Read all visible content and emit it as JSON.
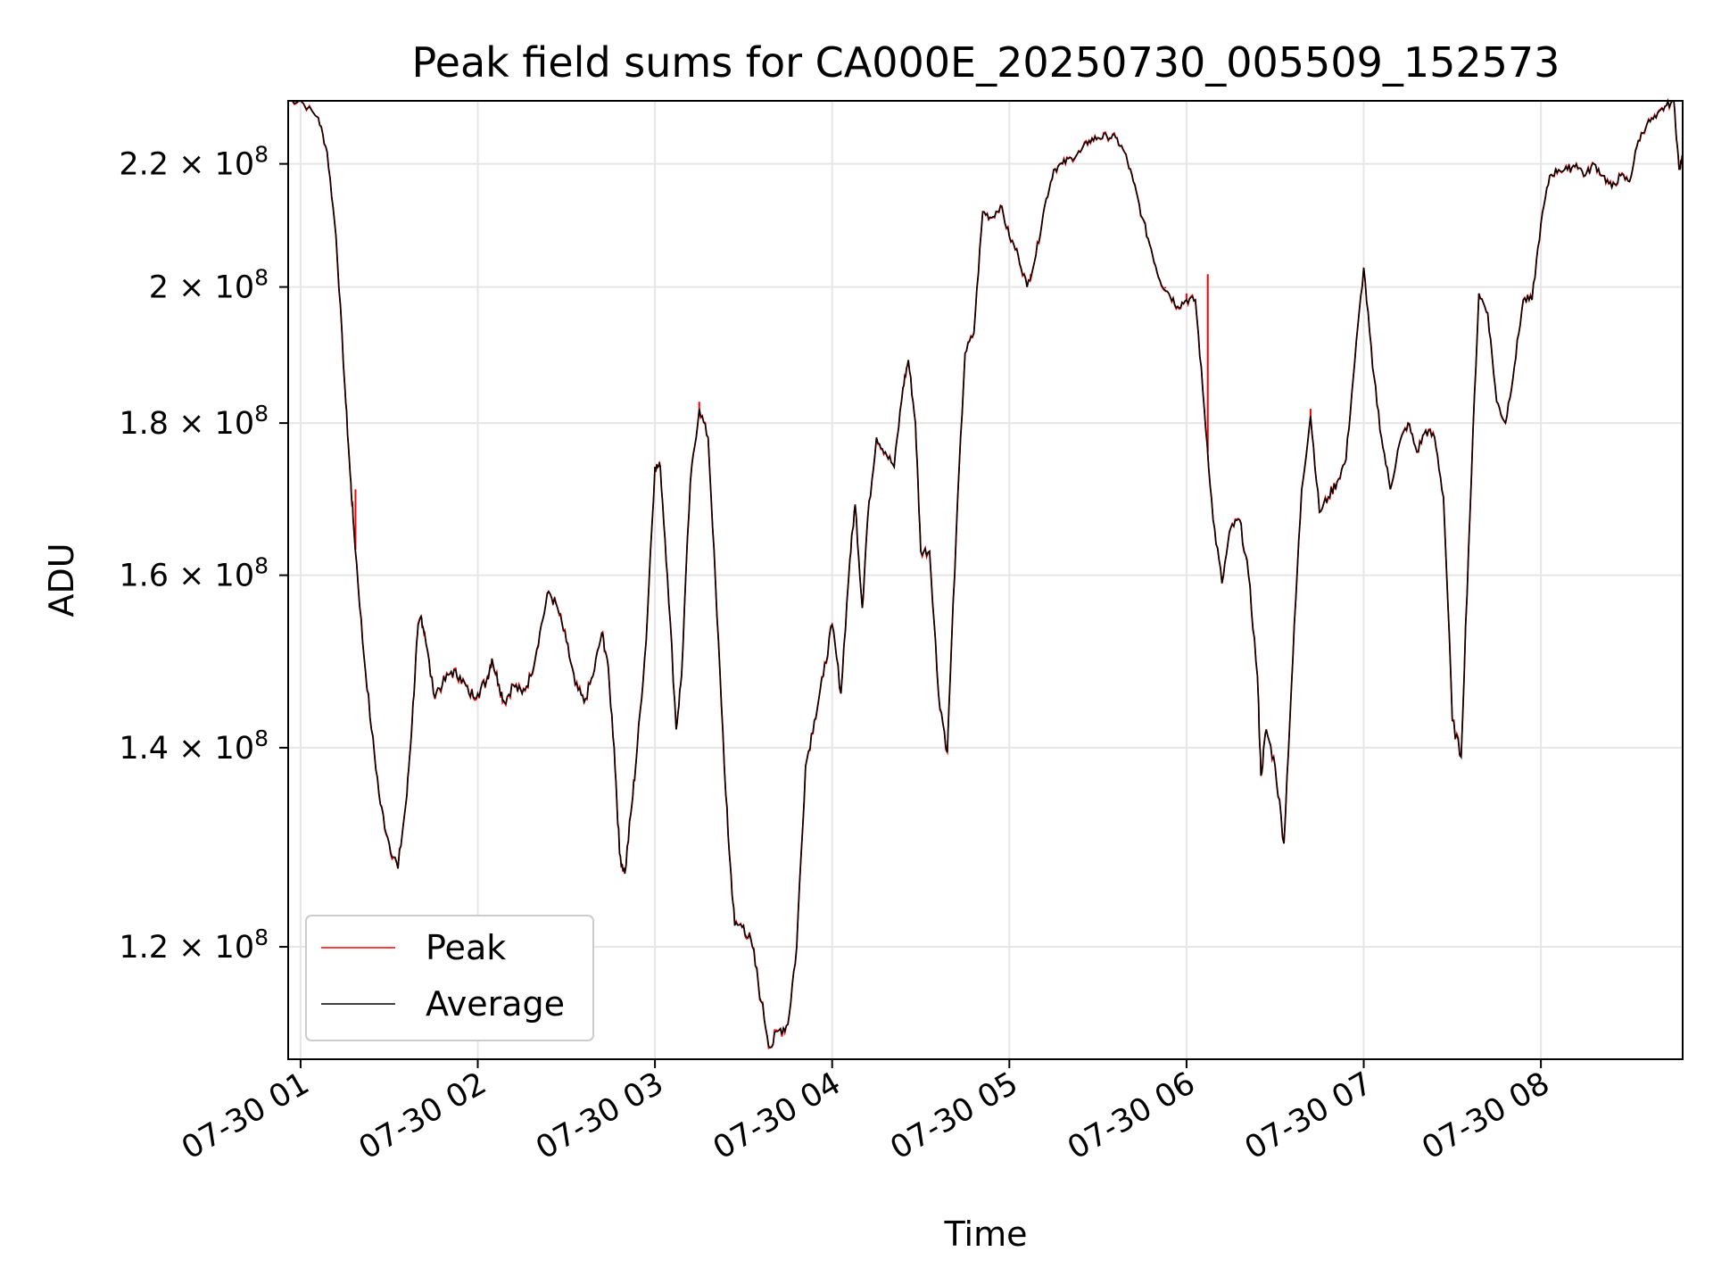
{
  "chart_data": {
    "type": "line",
    "title": "Peak field sums for CA000E_20250730_005509_152573",
    "xlabel": "Time",
    "ylabel": "ADU",
    "y_scale": "log",
    "ylim": [
      110000000,
      231000000
    ],
    "xlim_hours": [
      0.93,
      8.8
    ],
    "x_ticks": [
      {
        "hour": 1,
        "label": "07-30 01"
      },
      {
        "hour": 2,
        "label": "07-30 02"
      },
      {
        "hour": 3,
        "label": "07-30 03"
      },
      {
        "hour": 4,
        "label": "07-30 04"
      },
      {
        "hour": 5,
        "label": "07-30 05"
      },
      {
        "hour": 6,
        "label": "07-30 06"
      },
      {
        "hour": 7,
        "label": "07-30 07"
      },
      {
        "hour": 8,
        "label": "07-30 08"
      }
    ],
    "y_ticks": [
      {
        "value": 120000000,
        "mantissa": "1.2",
        "exponent": "8"
      },
      {
        "value": 140000000,
        "mantissa": "1.4",
        "exponent": "8"
      },
      {
        "value": 160000000,
        "mantissa": "1.6",
        "exponent": "8"
      },
      {
        "value": 180000000,
        "mantissa": "1.8",
        "exponent": "8"
      },
      {
        "value": 200000000,
        "mantissa": "2",
        "exponent": "8"
      },
      {
        "value": 220000000,
        "mantissa": "2.2",
        "exponent": "8"
      }
    ],
    "times_label": "07-30",
    "grid": true,
    "legend": "lower-left",
    "series": [
      {
        "name": "Average",
        "color": "#000000",
        "points": [
          [
            0.93,
            231
          ],
          [
            1.0,
            231
          ],
          [
            1.1,
            228
          ],
          [
            1.15,
            222
          ],
          [
            1.2,
            208
          ],
          [
            1.25,
            185
          ],
          [
            1.28,
            173
          ],
          [
            1.3,
            166
          ],
          [
            1.35,
            152
          ],
          [
            1.4,
            142
          ],
          [
            1.45,
            134
          ],
          [
            1.5,
            130
          ],
          [
            1.55,
            127.5
          ],
          [
            1.6,
            135
          ],
          [
            1.63,
            143
          ],
          [
            1.66,
            153
          ],
          [
            1.68,
            155
          ],
          [
            1.7,
            153
          ],
          [
            1.75,
            146
          ],
          [
            1.8,
            147
          ],
          [
            1.85,
            148.5
          ],
          [
            1.9,
            148
          ],
          [
            1.95,
            146
          ],
          [
            2.0,
            146
          ],
          [
            2.05,
            147.5
          ],
          [
            2.08,
            150
          ],
          [
            2.12,
            147
          ],
          [
            2.15,
            145
          ],
          [
            2.2,
            147
          ],
          [
            2.25,
            146
          ],
          [
            2.3,
            148
          ],
          [
            2.35,
            153
          ],
          [
            2.4,
            158
          ],
          [
            2.45,
            156
          ],
          [
            2.5,
            152
          ],
          [
            2.55,
            147
          ],
          [
            2.6,
            145
          ],
          [
            2.65,
            148
          ],
          [
            2.7,
            153
          ],
          [
            2.73,
            150
          ],
          [
            2.77,
            140
          ],
          [
            2.8,
            129
          ],
          [
            2.83,
            127
          ],
          [
            2.87,
            134
          ],
          [
            2.9,
            140
          ],
          [
            2.95,
            152
          ],
          [
            3.0,
            174
          ],
          [
            3.03,
            174
          ],
          [
            3.07,
            160
          ],
          [
            3.12,
            142
          ],
          [
            3.15,
            148
          ],
          [
            3.2,
            172
          ],
          [
            3.25,
            182
          ],
          [
            3.3,
            178
          ],
          [
            3.35,
            155
          ],
          [
            3.4,
            135
          ],
          [
            3.42,
            129
          ],
          [
            3.45,
            122
          ],
          [
            3.5,
            122
          ],
          [
            3.55,
            120
          ],
          [
            3.6,
            115
          ],
          [
            3.65,
            111
          ],
          [
            3.7,
            112.5
          ],
          [
            3.75,
            113
          ],
          [
            3.8,
            120
          ],
          [
            3.85,
            138
          ],
          [
            3.9,
            143
          ],
          [
            3.95,
            148
          ],
          [
            4.0,
            154
          ],
          [
            4.05,
            146
          ],
          [
            4.1,
            162
          ],
          [
            4.13,
            169
          ],
          [
            4.17,
            156
          ],
          [
            4.2,
            167
          ],
          [
            4.25,
            178
          ],
          [
            4.3,
            176
          ],
          [
            4.35,
            174
          ],
          [
            4.4,
            185
          ],
          [
            4.43,
            189
          ],
          [
            4.47,
            180
          ],
          [
            4.5,
            163
          ],
          [
            4.55,
            163
          ],
          [
            4.6,
            146
          ],
          [
            4.65,
            139.5
          ],
          [
            4.7,
            165
          ],
          [
            4.75,
            190
          ],
          [
            4.8,
            193
          ],
          [
            4.85,
            212
          ],
          [
            4.9,
            211
          ],
          [
            4.95,
            213
          ],
          [
            5.0,
            208
          ],
          [
            5.05,
            205
          ],
          [
            5.1,
            200
          ],
          [
            5.15,
            205
          ],
          [
            5.2,
            213
          ],
          [
            5.25,
            219
          ],
          [
            5.3,
            220
          ],
          [
            5.35,
            221
          ],
          [
            5.4,
            222
          ],
          [
            5.45,
            224
          ],
          [
            5.5,
            224.5
          ],
          [
            5.55,
            224.8
          ],
          [
            5.6,
            224.5
          ],
          [
            5.65,
            222
          ],
          [
            5.7,
            217
          ],
          [
            5.75,
            211
          ],
          [
            5.8,
            206
          ],
          [
            5.85,
            201
          ],
          [
            5.9,
            199
          ],
          [
            5.95,
            197
          ],
          [
            6.0,
            198
          ],
          [
            6.05,
            198
          ],
          [
            6.1,
            182
          ],
          [
            6.15,
            167
          ],
          [
            6.2,
            159
          ],
          [
            6.25,
            166
          ],
          [
            6.3,
            167
          ],
          [
            6.35,
            160
          ],
          [
            6.4,
            148
          ],
          [
            6.42,
            137
          ],
          [
            6.45,
            142
          ],
          [
            6.5,
            138
          ],
          [
            6.55,
            130
          ],
          [
            6.6,
            150
          ],
          [
            6.65,
            171
          ],
          [
            6.7,
            181
          ],
          [
            6.75,
            168
          ],
          [
            6.8,
            170
          ],
          [
            6.85,
            172
          ],
          [
            6.9,
            175
          ],
          [
            6.95,
            189
          ],
          [
            7.0,
            203
          ],
          [
            7.05,
            188
          ],
          [
            7.1,
            178
          ],
          [
            7.15,
            171
          ],
          [
            7.2,
            177
          ],
          [
            7.25,
            180
          ],
          [
            7.3,
            176
          ],
          [
            7.35,
            179
          ],
          [
            7.4,
            178
          ],
          [
            7.45,
            170
          ],
          [
            7.5,
            143
          ],
          [
            7.55,
            139
          ],
          [
            7.6,
            168
          ],
          [
            7.65,
            199
          ],
          [
            7.7,
            196
          ],
          [
            7.75,
            183
          ],
          [
            7.8,
            180
          ],
          [
            7.85,
            188
          ],
          [
            7.9,
            198
          ],
          [
            7.95,
            198
          ],
          [
            8.0,
            210
          ],
          [
            8.05,
            218
          ],
          [
            8.1,
            219
          ],
          [
            8.15,
            219
          ],
          [
            8.2,
            220
          ],
          [
            8.25,
            218
          ],
          [
            8.3,
            220
          ],
          [
            8.35,
            218
          ],
          [
            8.4,
            216
          ],
          [
            8.45,
            218
          ],
          [
            8.5,
            217
          ],
          [
            8.55,
            224
          ],
          [
            8.6,
            227
          ],
          [
            8.65,
            228
          ],
          [
            8.7,
            230
          ],
          [
            8.75,
            231
          ],
          [
            8.78,
            219
          ],
          [
            8.8,
            221
          ]
        ]
      },
      {
        "name": "Peak",
        "color": "#ff0000",
        "spikes": [
          [
            1.31,
            171
          ],
          [
            2.46,
            155
          ],
          [
            3.25,
            183
          ],
          [
            5.12,
            201
          ],
          [
            5.88,
            200
          ],
          [
            6.0,
            199
          ],
          [
            6.12,
            202
          ],
          [
            6.7,
            182
          ]
        ]
      }
    ]
  }
}
